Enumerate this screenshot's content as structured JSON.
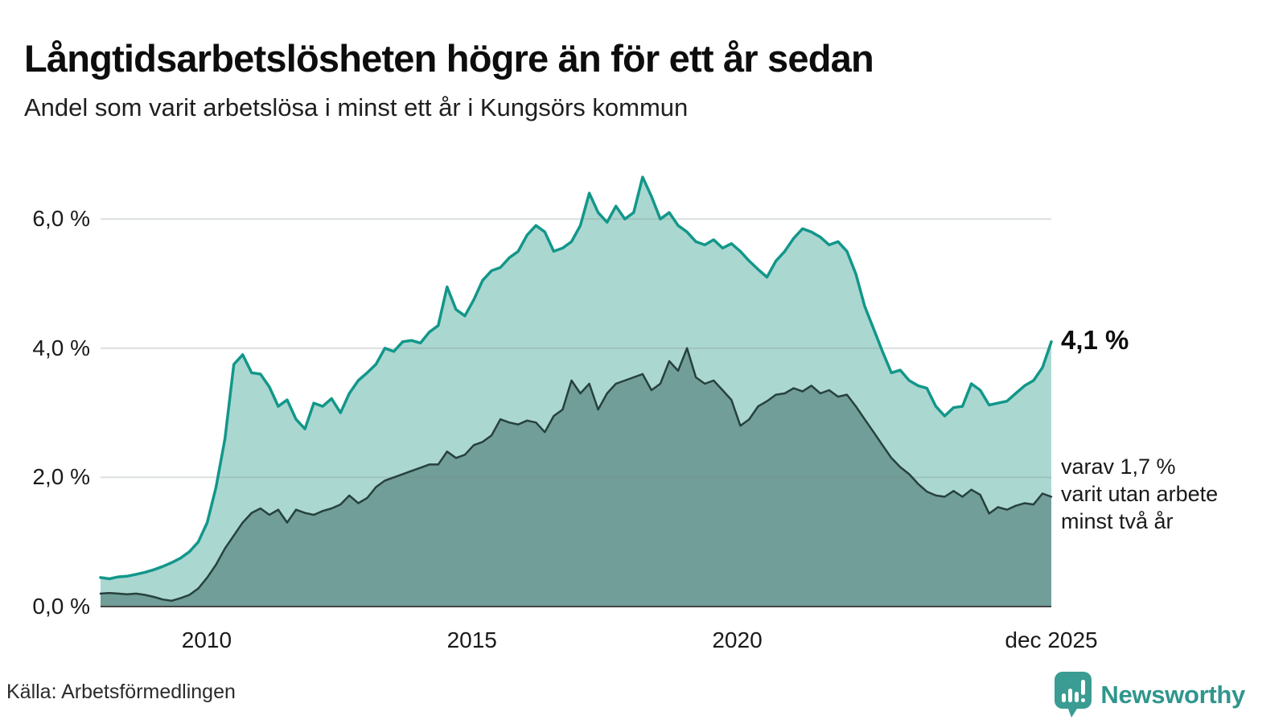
{
  "header": {
    "title": "Långtidsarbetslösheten högre än för ett år sedan",
    "subtitle": "Andel som varit arbetslösa i minst ett år i Kungsörs kommun"
  },
  "annotations": {
    "latest_total": "4,1 %",
    "secondary": "varav 1,7 %\nvarit utan arbete\nminst två år"
  },
  "footer": {
    "source": "Källa: Arbetsförmedlingen",
    "brand": "Newsworthy"
  },
  "colors": {
    "line_total": "#12978a",
    "fill_total": "#abd7d1",
    "line_two_years": "#27413d",
    "fill_two_years": "#719e98",
    "gridline": "rgba(125,140,145,0.28)",
    "baseline": "#454545",
    "brand_teal": "#2f968d",
    "brand_icon": "#3a9c92"
  },
  "chart_data": {
    "type": "area",
    "title": "Långtidsarbetslösheten högre än för ett år sedan",
    "subtitle": "Andel som varit arbetslösa i minst ett år i Kungsörs kommun",
    "unit": "%",
    "x_start": 2008.0,
    "x_end": 2025.92,
    "ylim": [
      0,
      6.9
    ],
    "grid": "horizontal",
    "legend": "none",
    "x_ticks": [
      {
        "year": 2010,
        "label": "2010"
      },
      {
        "year": 2015,
        "label": "2015"
      },
      {
        "year": 2020,
        "label": "2020"
      },
      {
        "year": 2025.92,
        "label": "dec 2025"
      }
    ],
    "y_ticks": [
      {
        "value": 0,
        "label": "0,0 %"
      },
      {
        "value": 2,
        "label": "2,0 %"
      },
      {
        "value": 4,
        "label": "4,0 %"
      },
      {
        "value": 6,
        "label": "6,0 %"
      }
    ],
    "series": [
      {
        "name": "Arbetslösa minst ett år",
        "latest_value": 4.1,
        "color": "#12978a",
        "fill": "#abd7d1",
        "stroke_width": 3.5,
        "values": [
          0.45,
          0.43,
          0.46,
          0.47,
          0.5,
          0.53,
          0.57,
          0.62,
          0.68,
          0.75,
          0.85,
          1.0,
          1.3,
          1.85,
          2.6,
          3.75,
          3.9,
          3.62,
          3.6,
          3.4,
          3.1,
          3.2,
          2.9,
          2.75,
          3.15,
          3.1,
          3.22,
          3.0,
          3.3,
          3.5,
          3.62,
          3.75,
          4.0,
          3.95,
          4.1,
          4.12,
          4.08,
          4.25,
          4.35,
          4.95,
          4.6,
          4.5,
          4.75,
          5.05,
          5.2,
          5.25,
          5.4,
          5.5,
          5.75,
          5.9,
          5.8,
          5.5,
          5.55,
          5.65,
          5.9,
          6.4,
          6.1,
          5.95,
          6.2,
          6.0,
          6.1,
          6.65,
          6.35,
          6.0,
          6.1,
          5.9,
          5.8,
          5.65,
          5.6,
          5.68,
          5.55,
          5.62,
          5.5,
          5.35,
          5.22,
          5.1,
          5.35,
          5.5,
          5.7,
          5.85,
          5.8,
          5.72,
          5.6,
          5.65,
          5.5,
          5.15,
          4.65,
          4.3,
          3.95,
          3.62,
          3.66,
          3.5,
          3.42,
          3.38,
          3.1,
          2.95,
          3.08,
          3.1,
          3.45,
          3.35,
          3.12,
          3.15,
          3.18,
          3.3,
          3.42,
          3.5,
          3.7,
          4.1
        ]
      },
      {
        "name": "Arbetslösa minst två år",
        "latest_value": 1.7,
        "color": "#27413d",
        "fill": "#719e98",
        "stroke_width": 2.5,
        "values": [
          0.2,
          0.21,
          0.2,
          0.19,
          0.2,
          0.18,
          0.15,
          0.11,
          0.09,
          0.13,
          0.18,
          0.28,
          0.45,
          0.65,
          0.9,
          1.1,
          1.3,
          1.45,
          1.52,
          1.42,
          1.5,
          1.3,
          1.5,
          1.45,
          1.42,
          1.48,
          1.52,
          1.58,
          1.72,
          1.6,
          1.68,
          1.85,
          1.95,
          2.0,
          2.05,
          2.1,
          2.15,
          2.2,
          2.2,
          2.4,
          2.3,
          2.35,
          2.5,
          2.55,
          2.65,
          2.9,
          2.85,
          2.82,
          2.88,
          2.85,
          2.7,
          2.95,
          3.05,
          3.5,
          3.3,
          3.45,
          3.05,
          3.3,
          3.45,
          3.5,
          3.55,
          3.6,
          3.35,
          3.45,
          3.8,
          3.65,
          4.0,
          3.55,
          3.45,
          3.5,
          3.35,
          3.2,
          2.8,
          2.9,
          3.1,
          3.18,
          3.28,
          3.3,
          3.38,
          3.33,
          3.42,
          3.3,
          3.35,
          3.25,
          3.28,
          3.1,
          2.9,
          2.7,
          2.5,
          2.3,
          2.16,
          2.05,
          1.9,
          1.78,
          1.72,
          1.7,
          1.79,
          1.7,
          1.81,
          1.73,
          1.44,
          1.54,
          1.5,
          1.56,
          1.6,
          1.58,
          1.75,
          1.7
        ]
      }
    ]
  }
}
